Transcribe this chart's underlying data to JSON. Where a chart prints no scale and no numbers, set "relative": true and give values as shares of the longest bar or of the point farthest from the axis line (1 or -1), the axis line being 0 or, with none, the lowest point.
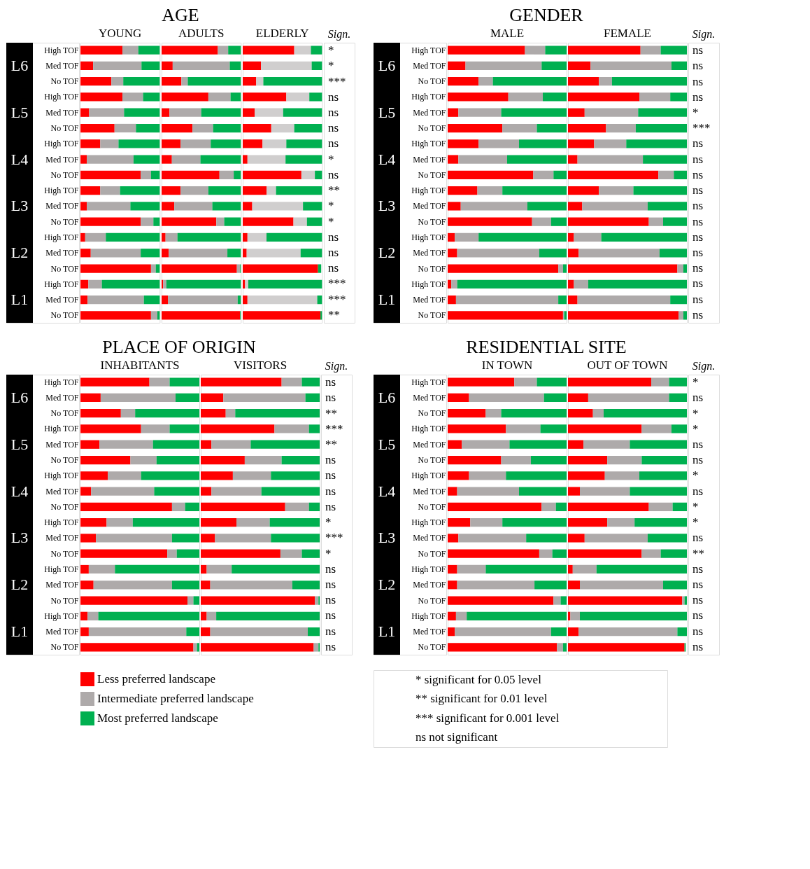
{
  "chart_data": [
    {
      "type": "other",
      "title": "AGE",
      "annotations": [
        "L6",
        "L5",
        "L4",
        "L3",
        "L2",
        "L1"
      ]
    },
    {
      "type": "bar",
      "orientation": "horizontal",
      "stacked": true,
      "relative": true,
      "title": "YOUNG",
      "tick_labels": "y",
      "categories": [
        "High TOF",
        "Med TOF",
        "No TOF",
        "High TOF",
        "Med TOF",
        "No TOF",
        "High TOF",
        "Med TOF",
        "No TOF",
        "High TOF",
        "Med TOF",
        "No TOF",
        "High TOF",
        "Med TOF",
        "No TOF",
        "High TOF",
        "Med TOF",
        "No TOF"
      ],
      "series": [
        {
          "color": "#ff0000",
          "values": [
            0.53,
            0.16,
            0.39,
            0.53,
            0.11,
            0.43,
            0.25,
            0.08,
            0.76,
            0.25,
            0.08,
            0.76,
            0.06,
            0.13,
            0.89,
            0.1,
            0.09,
            0.89
          ]
        },
        {
          "color": "#aeaaaa",
          "values": [
            0.2,
            0.61,
            0.15,
            0.26,
            0.44,
            0.27,
            0.23,
            0.59,
            0.13,
            0.25,
            0.55,
            0.16,
            0.26,
            0.63,
            0.06,
            0.17,
            0.71,
            0.08
          ]
        },
        {
          "color": "#00b050",
          "values": [
            0.27,
            0.23,
            0.46,
            0.21,
            0.45,
            0.3,
            0.52,
            0.33,
            0.11,
            0.5,
            0.37,
            0.08,
            0.68,
            0.24,
            0.05,
            0.73,
            0.2,
            0.03
          ]
        }
      ]
    },
    {
      "type": "bar",
      "orientation": "horizontal",
      "stacked": true,
      "relative": true,
      "title": "ADULTS",
      "tick_labels": false,
      "series": [
        {
          "color": "#ff0000",
          "values": [
            0.71,
            0.14,
            0.25,
            0.59,
            0.1,
            0.39,
            0.24,
            0.13,
            0.73,
            0.24,
            0.16,
            0.69,
            0.05,
            0.09,
            0.95,
            0.02,
            0.08,
            0.99
          ]
        },
        {
          "color": "#aeaaaa",
          "values": [
            0.13,
            0.72,
            0.08,
            0.28,
            0.4,
            0.26,
            0.38,
            0.36,
            0.18,
            0.35,
            0.48,
            0.1,
            0.15,
            0.74,
            0.04,
            0.04,
            0.88,
            null
          ]
        },
        {
          "color": "#00b050",
          "values": [
            0.16,
            0.14,
            0.67,
            0.13,
            0.5,
            0.35,
            0.38,
            0.51,
            0.09,
            0.41,
            0.36,
            0.21,
            0.8,
            0.17,
            0.01,
            0.94,
            0.04,
            0.01
          ]
        }
      ]
    },
    {
      "type": "bar",
      "orientation": "horizontal",
      "stacked": true,
      "relative": true,
      "title": "ELDERLY",
      "tick_labels": false,
      "series": [
        {
          "color": "#ff0000",
          "values": [
            0.65,
            0.23,
            0.17,
            0.55,
            0.15,
            0.36,
            0.25,
            0.06,
            0.74,
            0.3,
            0.12,
            0.64,
            0.06,
            0.05,
            0.95,
            0.03,
            0.06,
            0.98
          ]
        },
        {
          "color": "#d0cece",
          "values": [
            0.21,
            0.64,
            0.09,
            0.29,
            0.36,
            0.29,
            0.3,
            0.48,
            0.17,
            0.12,
            0.64,
            0.17,
            0.24,
            0.68,
            null,
            0.04,
            0.88,
            null
          ]
        },
        {
          "color": "#00b050",
          "values": [
            0.14,
            0.13,
            0.74,
            0.16,
            0.49,
            0.35,
            0.45,
            0.46,
            0.09,
            0.58,
            0.24,
            0.19,
            0.7,
            0.27,
            0.04,
            0.93,
            0.06,
            0.02
          ]
        }
      ]
    },
    {
      "type": "other",
      "title": "Sign.",
      "annotations": [
        "*",
        "*",
        "***",
        "ns",
        "ns",
        "ns",
        "ns",
        "*",
        "ns",
        "**",
        "*",
        "*",
        "ns",
        "ns",
        "ns",
        "***",
        "***",
        "**"
      ]
    },
    {
      "type": "other",
      "title": "GENDER",
      "annotations": [
        "L6",
        "L5",
        "L4",
        "L3",
        "L2",
        "L1"
      ]
    },
    {
      "type": "bar",
      "orientation": "horizontal",
      "stacked": true,
      "relative": true,
      "title": "MALE",
      "tick_labels": "y",
      "categories": [
        "High TOF",
        "Med TOF",
        "No TOF",
        "High TOF",
        "Med TOF",
        "No TOF",
        "High TOF",
        "Med TOF",
        "No TOF",
        "High TOF",
        "Med TOF",
        "No TOF",
        "High TOF",
        "Med TOF",
        "No TOF",
        "High TOF",
        "Med TOF",
        "No TOF"
      ],
      "series": [
        {
          "color": "#ff0000",
          "values": [
            0.65,
            0.15,
            0.26,
            0.51,
            0.09,
            0.46,
            0.26,
            0.09,
            0.72,
            0.25,
            0.11,
            0.71,
            0.06,
            0.08,
            0.93,
            0.03,
            0.07,
            0.97
          ]
        },
        {
          "color": "#aeaaaa",
          "values": [
            0.17,
            0.64,
            0.12,
            0.29,
            0.36,
            0.29,
            0.34,
            0.41,
            0.17,
            0.21,
            0.56,
            0.16,
            0.2,
            0.69,
            0.04,
            0.05,
            0.86,
            0.01
          ]
        },
        {
          "color": "#00b050",
          "values": [
            0.18,
            0.21,
            0.62,
            0.2,
            0.55,
            0.25,
            0.4,
            0.5,
            0.11,
            0.54,
            0.33,
            0.13,
            0.74,
            0.23,
            0.03,
            0.92,
            0.07,
            0.02
          ]
        }
      ]
    },
    {
      "type": "bar",
      "orientation": "horizontal",
      "stacked": true,
      "relative": true,
      "title": "FEMALE",
      "tick_labels": false,
      "series": [
        {
          "color": "#ff0000",
          "values": [
            0.61,
            0.19,
            0.26,
            0.6,
            0.14,
            0.32,
            0.22,
            0.08,
            0.76,
            0.26,
            0.12,
            0.68,
            0.05,
            0.09,
            0.92,
            0.05,
            0.08,
            0.93
          ]
        },
        {
          "color": "#aeaaaa",
          "values": [
            0.17,
            0.68,
            0.11,
            0.26,
            0.45,
            0.25,
            0.27,
            0.55,
            0.13,
            0.29,
            0.55,
            0.12,
            0.23,
            0.68,
            0.05,
            0.12,
            0.78,
            0.04
          ]
        },
        {
          "color": "#00b050",
          "values": [
            0.22,
            0.13,
            0.63,
            0.14,
            0.41,
            0.43,
            0.51,
            0.37,
            0.11,
            0.45,
            0.33,
            0.2,
            0.72,
            0.23,
            0.03,
            0.83,
            0.14,
            0.03
          ]
        }
      ]
    },
    {
      "type": "other",
      "title": "Sign.",
      "annotations": [
        "ns",
        "ns",
        "ns",
        "ns",
        "*",
        "***",
        "ns",
        "ns",
        "ns",
        "ns",
        "ns",
        "ns",
        "ns",
        "ns",
        "ns",
        "ns",
        "ns",
        "ns"
      ]
    },
    {
      "type": "other",
      "title": "PLACE OF ORIGIN",
      "annotations": [
        "L6",
        "L5",
        "L4",
        "L3",
        "L2",
        "L1"
      ]
    },
    {
      "type": "bar",
      "orientation": "horizontal",
      "stacked": true,
      "relative": true,
      "title": "INHABITANTS",
      "tick_labels": "y",
      "legend": "bottom",
      "categories": [
        "High TOF",
        "Med TOF",
        "No TOF",
        "High TOF",
        "Med TOF",
        "No TOF",
        "High TOF",
        "Med TOF",
        "No TOF",
        "High TOF",
        "Med TOF",
        "No TOF",
        "High TOF",
        "Med TOF",
        "No TOF",
        "High TOF",
        "Med TOF",
        "No TOF"
      ],
      "series": [
        {
          "name": "Less preferred landscape",
          "color": "#ff0000",
          "values": [
            0.58,
            0.17,
            0.34,
            0.51,
            0.16,
            0.42,
            0.23,
            0.09,
            0.77,
            0.22,
            0.13,
            0.73,
            0.07,
            0.11,
            0.9,
            0.06,
            0.07,
            0.95
          ]
        },
        {
          "name": "Intermediate preferred landscape",
          "color": "#aeaaaa",
          "values": [
            0.17,
            0.63,
            0.12,
            0.24,
            0.45,
            0.22,
            0.28,
            0.53,
            0.11,
            0.22,
            0.64,
            0.08,
            0.22,
            0.66,
            0.05,
            0.09,
            0.82,
            0.03
          ]
        },
        {
          "name": "Most preferred landscape",
          "color": "#00b050",
          "values": [
            0.25,
            0.2,
            0.54,
            0.25,
            0.39,
            0.36,
            0.49,
            0.38,
            0.12,
            0.56,
            0.23,
            0.19,
            0.71,
            0.23,
            0.05,
            0.85,
            0.11,
            0.02
          ]
        }
      ]
    },
    {
      "type": "bar",
      "orientation": "horizontal",
      "stacked": true,
      "relative": true,
      "title": "VISITORS",
      "tick_labels": false,
      "series": [
        {
          "color": "#ff0000",
          "values": [
            0.68,
            0.19,
            0.21,
            0.62,
            0.09,
            0.37,
            0.27,
            0.09,
            0.71,
            0.3,
            0.12,
            0.67,
            0.05,
            0.08,
            0.96,
            0.05,
            0.08,
            0.95
          ]
        },
        {
          "color": "#aeaaaa",
          "values": [
            0.17,
            0.69,
            0.08,
            0.29,
            0.33,
            0.31,
            0.32,
            0.42,
            0.2,
            0.28,
            0.47,
            0.18,
            0.21,
            0.69,
            0.03,
            0.08,
            0.82,
            0.04
          ]
        },
        {
          "color": "#00b050",
          "values": [
            0.15,
            0.12,
            0.71,
            0.09,
            0.58,
            0.32,
            0.41,
            0.49,
            0.09,
            0.42,
            0.41,
            0.15,
            0.74,
            0.23,
            0.01,
            0.87,
            0.1,
            0.01
          ]
        }
      ]
    },
    {
      "type": "other",
      "title": "Sign.",
      "annotations": [
        "ns",
        "ns",
        "**",
        "***",
        "**",
        "ns",
        "ns",
        "ns",
        "ns",
        "*",
        "***",
        "*",
        "ns",
        "ns",
        "ns",
        "ns",
        "ns",
        "ns"
      ]
    },
    {
      "type": "other",
      "title": "RESIDENTIAL SITE",
      "annotations": [
        "L6",
        "L5",
        "L4",
        "L3",
        "L2",
        "L1"
      ]
    },
    {
      "type": "bar",
      "orientation": "horizontal",
      "stacked": true,
      "relative": true,
      "title": "IN TOWN",
      "tick_labels": "y",
      "categories": [
        "High TOF",
        "Med TOF",
        "No TOF",
        "High TOF",
        "Med TOF",
        "No TOF",
        "High TOF",
        "Med TOF",
        "No TOF",
        "High TOF",
        "Med TOF",
        "No TOF",
        "High TOF",
        "Med TOF",
        "No TOF",
        "High TOF",
        "Med TOF",
        "No TOF"
      ],
      "series": [
        {
          "color": "#ff0000",
          "values": [
            0.56,
            0.18,
            0.32,
            0.49,
            0.12,
            0.45,
            0.18,
            0.08,
            0.79,
            0.19,
            0.09,
            0.77,
            0.08,
            0.08,
            0.89,
            0.07,
            0.06,
            0.92
          ]
        },
        {
          "color": "#aeaaaa",
          "values": [
            0.19,
            0.63,
            0.13,
            0.29,
            0.4,
            0.25,
            0.31,
            0.52,
            0.12,
            0.27,
            0.57,
            0.11,
            0.24,
            0.65,
            0.06,
            0.09,
            0.81,
            0.05
          ]
        },
        {
          "color": "#00b050",
          "values": [
            0.25,
            0.19,
            0.55,
            0.22,
            0.48,
            0.3,
            0.51,
            0.4,
            0.09,
            0.54,
            0.34,
            0.12,
            0.68,
            0.27,
            0.05,
            0.84,
            0.13,
            0.03
          ]
        }
      ]
    },
    {
      "type": "bar",
      "orientation": "horizontal",
      "stacked": true,
      "relative": true,
      "title": "OUT OF TOWN",
      "tick_labels": false,
      "series": [
        {
          "color": "#ff0000",
          "values": [
            0.7,
            0.17,
            0.21,
            0.62,
            0.13,
            0.33,
            0.31,
            0.1,
            0.68,
            0.33,
            0.14,
            0.62,
            0.04,
            0.1,
            0.96,
            0.02,
            0.09,
            0.98
          ]
        },
        {
          "color": "#aeaaaa",
          "values": [
            0.15,
            0.68,
            0.09,
            0.25,
            0.39,
            0.29,
            0.29,
            0.42,
            0.2,
            0.23,
            0.53,
            0.16,
            0.2,
            0.7,
            0.02,
            0.08,
            0.83,
            null
          ]
        },
        {
          "color": "#00b050",
          "values": [
            0.15,
            0.15,
            0.7,
            0.13,
            0.48,
            0.38,
            0.4,
            0.48,
            0.12,
            0.44,
            0.33,
            0.22,
            0.76,
            0.2,
            0.02,
            0.9,
            0.08,
            0.01
          ]
        }
      ]
    },
    {
      "type": "other",
      "title": "Sign.",
      "annotations": [
        "*",
        "ns",
        "*",
        "*",
        "ns",
        "ns",
        "*",
        "ns",
        "*",
        "*",
        "ns",
        "**",
        "ns",
        "ns",
        "ns",
        "ns",
        "ns",
        "ns"
      ]
    },
    {
      "type": "other",
      "annotations": [
        "* significant for 0.05 level",
        "** significant for 0.01 level",
        "*** significant for 0.001 level",
        "ns not significant"
      ]
    }
  ]
}
